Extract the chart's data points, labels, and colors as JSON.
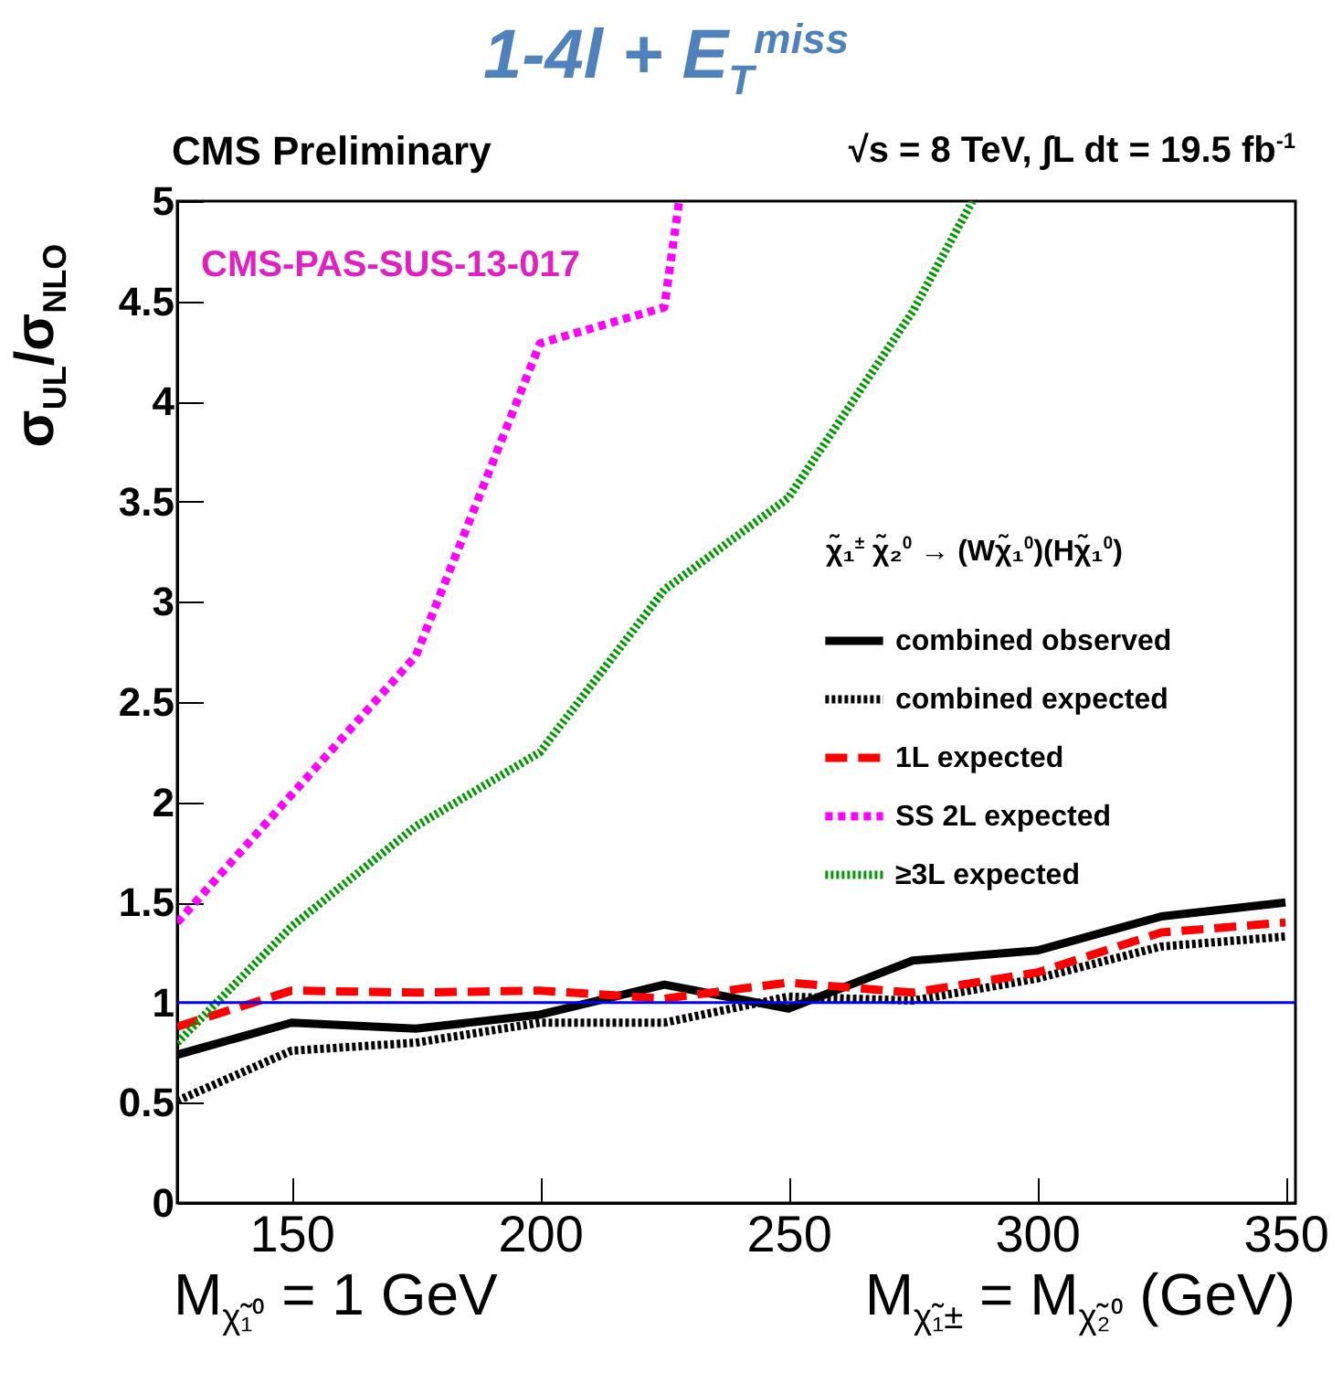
{
  "chart_data": {
    "type": "line",
    "title": "1-4l + E$_{T}$$^{miss}$",
    "subtitle": "CMS Preliminary",
    "xlabel": "M$_{χ̃₁±}$ = M$_{χ̃₂⁰}$ (GeV)",
    "ylabel": "σ$_{UL}$/σ$_{NLO}$",
    "legend_title": "χ̃₁$^{±}$ χ̃₂$^{0}$ → (Wχ̃₁$^{0}$)(Hχ̃₁$^{0}$)",
    "annotations": [
      "√s = 8 TeV, ∫L dt = 19.5 fb$^{-1}$",
      "CMS-PAS-SUS-13-017",
      "M$_{χ̃₁⁰}$ = 1 GeV"
    ],
    "x": [
      127,
      150,
      175,
      200,
      225,
      250,
      275,
      300,
      325,
      350
    ],
    "series": [
      {
        "name": "combined observed",
        "color": "#000000",
        "line_style": "solid",
        "values": [
          0.74,
          0.9,
          0.87,
          0.94,
          1.09,
          0.97,
          1.21,
          1.26,
          1.43,
          1.5
        ]
      },
      {
        "name": "combined expected",
        "color": "#000000",
        "line_style": "dotted",
        "values": [
          0.51,
          0.76,
          0.8,
          0.9,
          0.9,
          1.03,
          1.01,
          1.12,
          1.28,
          1.33
        ]
      },
      {
        "name": "1L expected",
        "color": "#ff0000",
        "line_style": "dashed",
        "values": [
          0.88,
          1.06,
          1.05,
          1.06,
          1.02,
          1.1,
          1.05,
          1.15,
          1.35,
          1.4
        ]
      },
      {
        "name": "SS 2L expected",
        "color": "#ff00ff",
        "line_style": "dashed",
        "x": [
          127,
          175,
          200,
          225,
          228
        ],
        "values": [
          1.4,
          2.73,
          4.29,
          4.47,
          5
        ]
      },
      {
        "name": "≥3L expected",
        "color": "#009900",
        "line_style": "dotted",
        "x": [
          127,
          150,
          175,
          200,
          225,
          250,
          275,
          287
        ],
        "values": [
          0.8,
          1.38,
          1.88,
          2.25,
          3.06,
          3.52,
          4.45,
          5
        ]
      }
    ],
    "ref_lines": [
      {
        "axis": "y",
        "value": 1,
        "color": "#0000ff"
      }
    ],
    "xlim": [
      127,
      352
    ],
    "xticks": [
      150,
      200,
      250,
      300,
      350
    ],
    "ylim": [
      0,
      5
    ],
    "yticks": [
      0,
      0.5,
      1,
      1.5,
      2,
      2.5,
      3,
      3.5,
      4,
      4.5,
      5
    ],
    "legend": "right"
  }
}
